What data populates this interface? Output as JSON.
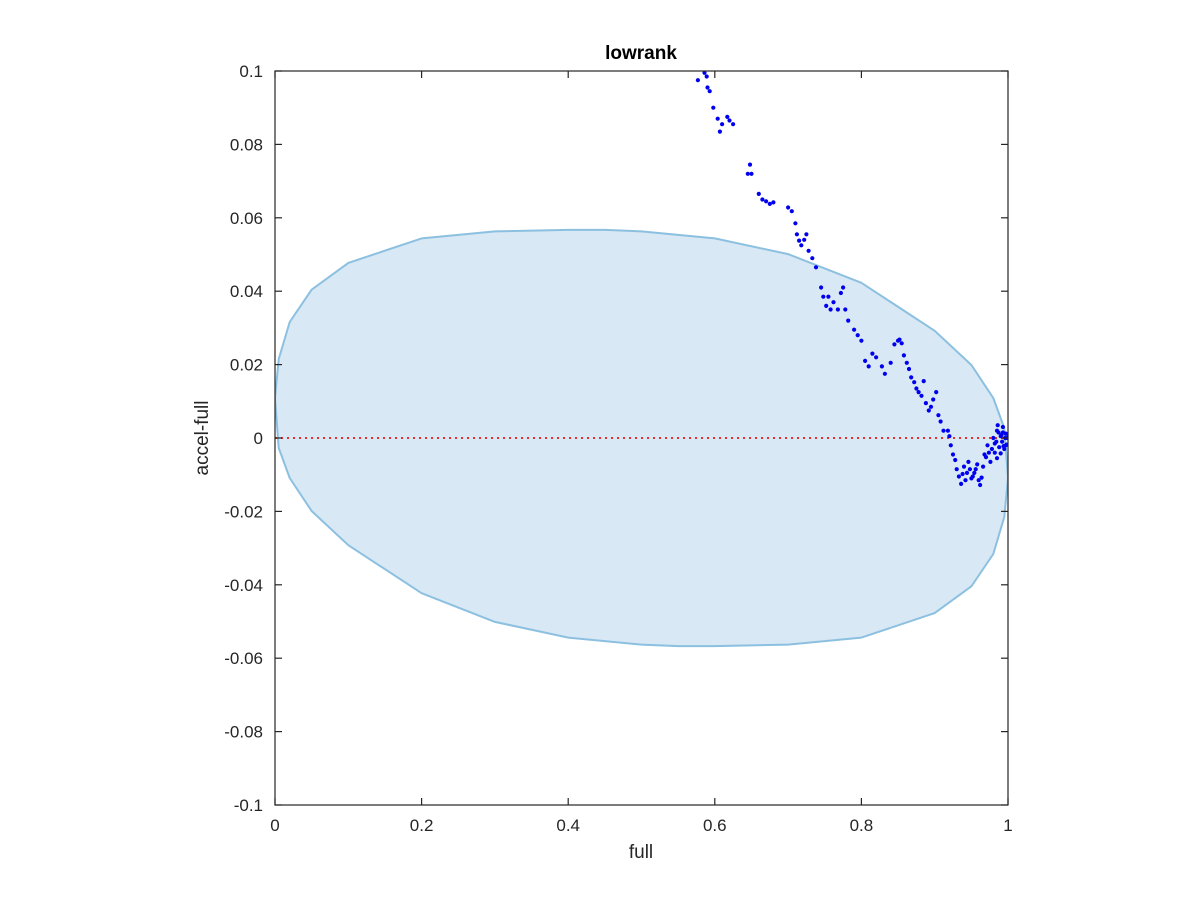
{
  "chart_data": {
    "type": "scatter",
    "title": "lowrank",
    "xlabel": "full",
    "ylabel": "accel-full",
    "xlim": [
      0,
      1
    ],
    "ylim": [
      -0.1,
      0.1
    ],
    "xticks": [
      0,
      0.2,
      0.4,
      0.6,
      0.8,
      1
    ],
    "xtick_labels": [
      "0",
      "0.2",
      "0.4",
      "0.6",
      "0.8",
      "1"
    ],
    "yticks": [
      0.1,
      0.08,
      0.06,
      0.04,
      0.02,
      0,
      -0.02,
      -0.04,
      -0.06,
      -0.08,
      -0.1
    ],
    "ytick_labels": [
      "0.1",
      "0.08",
      "0.06",
      "0.04",
      "0.02",
      "0",
      "-0.02",
      "-0.04",
      "-0.06",
      "-0.08",
      "-0.1"
    ],
    "grid": false,
    "colors": {
      "points": "#0000ee",
      "ellipse_fill": "#d8e8f4",
      "ellipse_edge": "#8cc0e0",
      "reference_line": "#e8302a",
      "axes": "#262626"
    },
    "reference_line": {
      "y": 0,
      "style": "dotted"
    },
    "ellipse": {
      "boundary": [
        [
          0,
          0.0109
        ],
        [
          0.005,
          0.0215
        ],
        [
          0.02,
          0.0316
        ],
        [
          0.05,
          0.0404
        ],
        [
          0.1,
          0.0477
        ],
        [
          0.2,
          0.0544
        ],
        [
          0.3,
          0.0563
        ],
        [
          0.4,
          0.0567
        ],
        [
          0.45,
          0.0567
        ],
        [
          0.5,
          0.0563
        ],
        [
          0.6,
          0.0544
        ],
        [
          0.7,
          0.0501
        ],
        [
          0.8,
          0.0423
        ],
        [
          0.9,
          0.0292
        ],
        [
          0.95,
          0.0199
        ],
        [
          0.98,
          0.0109
        ],
        [
          0.995,
          0.0027
        ],
        [
          1.0,
          -0.0109
        ],
        [
          0.995,
          -0.0215
        ],
        [
          0.98,
          -0.0316
        ],
        [
          0.95,
          -0.0404
        ],
        [
          0.9,
          -0.0477
        ],
        [
          0.8,
          -0.0544
        ],
        [
          0.7,
          -0.0563
        ],
        [
          0.6,
          -0.0567
        ],
        [
          0.55,
          -0.0567
        ],
        [
          0.5,
          -0.0563
        ],
        [
          0.4,
          -0.0544
        ],
        [
          0.3,
          -0.0501
        ],
        [
          0.2,
          -0.0423
        ],
        [
          0.1,
          -0.0292
        ],
        [
          0.05,
          -0.0199
        ],
        [
          0.02,
          -0.0109
        ],
        [
          0.005,
          -0.0027
        ]
      ]
    },
    "points": {
      "x": [
        0.577,
        0.586,
        0.589,
        0.59,
        0.593,
        0.598,
        0.604,
        0.607,
        0.61,
        0.617,
        0.62,
        0.625,
        0.645,
        0.648,
        0.65,
        0.66,
        0.665,
        0.67,
        0.675,
        0.68,
        0.7,
        0.705,
        0.71,
        0.712,
        0.715,
        0.718,
        0.722,
        0.725,
        0.728,
        0.733,
        0.738,
        0.745,
        0.748,
        0.752,
        0.755,
        0.758,
        0.762,
        0.768,
        0.772,
        0.775,
        0.778,
        0.782,
        0.79,
        0.795,
        0.8,
        0.805,
        0.81,
        0.815,
        0.82,
        0.828,
        0.832,
        0.84,
        0.845,
        0.85,
        0.852,
        0.855,
        0.858,
        0.862,
        0.865,
        0.868,
        0.872,
        0.875,
        0.878,
        0.882,
        0.885,
        0.888,
        0.892,
        0.895,
        0.898,
        0.902,
        0.905,
        0.908,
        0.912,
        0.918,
        0.92,
        0.922,
        0.925,
        0.928,
        0.93,
        0.933,
        0.936,
        0.938,
        0.94,
        0.942,
        0.944,
        0.946,
        0.948,
        0.95,
        0.952,
        0.954,
        0.956,
        0.958,
        0.96,
        0.962,
        0.964,
        0.966,
        0.968,
        0.97,
        0.972,
        0.974,
        0.976,
        0.978,
        0.98,
        0.982,
        0.984,
        0.985,
        0.986,
        0.987,
        0.988,
        0.99,
        0.991,
        0.992,
        0.993,
        0.994,
        0.995,
        0.996,
        0.997,
        0.998,
        0.999,
        1.0,
        0.993,
        0.997,
        0.99,
        0.985,
        0.982
      ],
      "y": [
        0.0975,
        0.0995,
        0.0985,
        0.0955,
        0.0945,
        0.09,
        0.087,
        0.0835,
        0.0855,
        0.0875,
        0.0865,
        0.0855,
        0.072,
        0.0745,
        0.072,
        0.0665,
        0.065,
        0.0645,
        0.0638,
        0.0642,
        0.0628,
        0.0618,
        0.0585,
        0.0555,
        0.0538,
        0.0525,
        0.054,
        0.0555,
        0.051,
        0.049,
        0.0465,
        0.041,
        0.0385,
        0.036,
        0.0385,
        0.035,
        0.037,
        0.035,
        0.0395,
        0.041,
        0.035,
        0.032,
        0.0295,
        0.028,
        0.0265,
        0.021,
        0.0195,
        0.023,
        0.022,
        0.0195,
        0.0175,
        0.0205,
        0.0255,
        0.0265,
        0.0268,
        0.0258,
        0.0225,
        0.0205,
        0.0188,
        0.0165,
        0.0152,
        0.0135,
        0.0125,
        0.0115,
        0.0155,
        0.0095,
        0.0075,
        0.0085,
        0.0105,
        0.0125,
        0.0062,
        0.0045,
        0.002,
        0.002,
        0.0005,
        -0.002,
        -0.0045,
        -0.006,
        -0.0085,
        -0.0105,
        -0.0125,
        -0.0098,
        -0.0078,
        -0.0115,
        -0.0095,
        -0.0065,
        -0.0085,
        -0.011,
        -0.0105,
        -0.0095,
        -0.0085,
        -0.0072,
        -0.0115,
        -0.0128,
        -0.0108,
        -0.0078,
        -0.0045,
        -0.0052,
        -0.002,
        -0.004,
        -0.0065,
        -0.003,
        0.0,
        -0.004,
        -0.001,
        0.002,
        0.0035,
        0.0015,
        -0.0025,
        -0.0042,
        0.0008,
        -0.001,
        0.0015,
        -0.0022,
        -0.003,
        0.0,
        0.0012,
        -0.0018,
        0.0,
        0.001,
        0.003,
        -0.002,
        0.0005,
        -0.0055,
        -0.0015
      ]
    }
  }
}
